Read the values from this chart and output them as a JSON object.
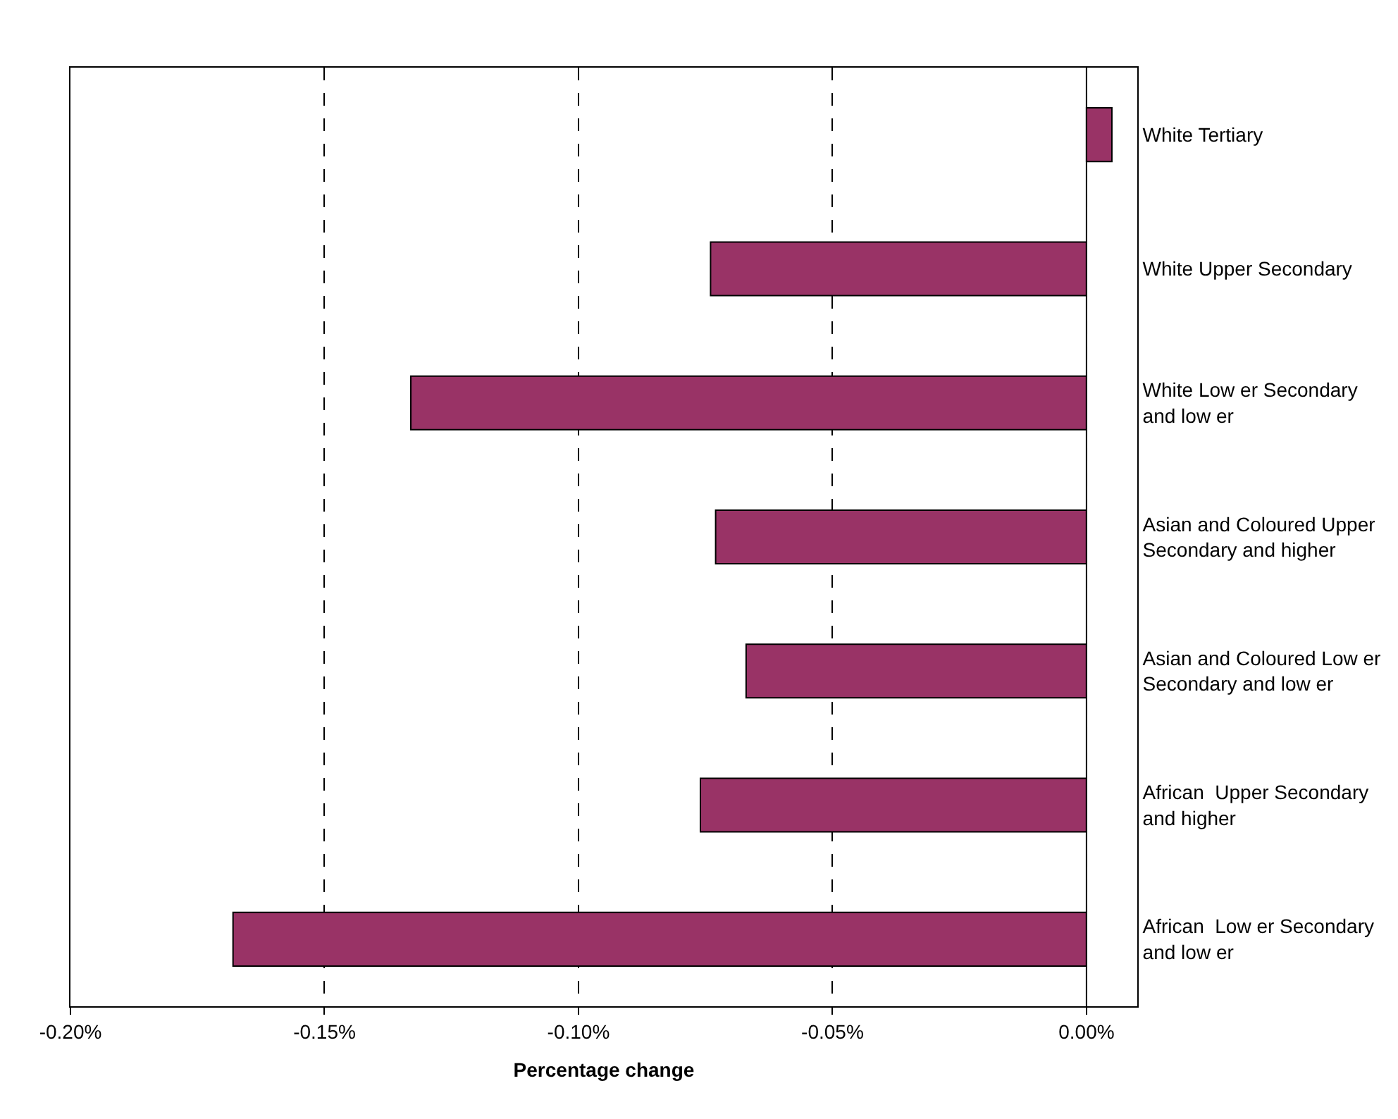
{
  "chart_data": {
    "type": "bar",
    "orientation": "horizontal",
    "xlabel": "Percentage change",
    "categories": [
      "White Tertiary",
      "White Upper Secondary",
      "White Low er Secondary\nand low er",
      "Asian and Coloured Upper\nSecondary and higher",
      "Asian and Coloured Low er\nSecondary and low er",
      "African  Upper Secondary\nand higher",
      "African  Low er Secondary\nand low er"
    ],
    "values": [
      0.005,
      -0.074,
      -0.133,
      -0.073,
      -0.067,
      -0.076,
      -0.168
    ],
    "color": "#993366",
    "xlim": [
      -0.2,
      0.01
    ],
    "xticks": [
      {
        "value": -0.2,
        "label": "-0.20%"
      },
      {
        "value": -0.15,
        "label": "-0.15%"
      },
      {
        "value": -0.1,
        "label": "-0.10%"
      },
      {
        "value": -0.05,
        "label": "-0.05%"
      },
      {
        "value": 0,
        "label": "0.00%"
      }
    ],
    "grid": "x"
  }
}
